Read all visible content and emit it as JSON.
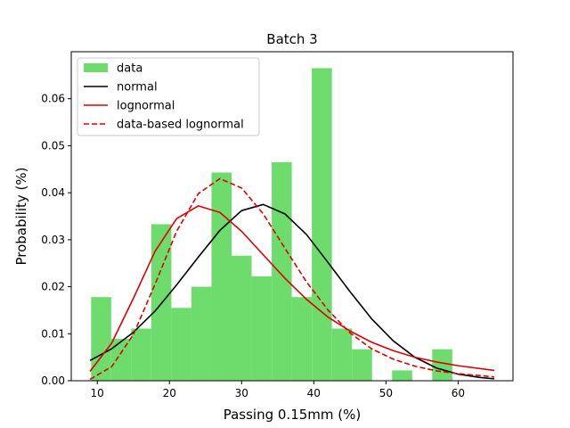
{
  "chart_data": {
    "type": "histogram",
    "title": "Batch 3",
    "xlabel": "Passing 0.15mm (%)",
    "ylabel": "Probability (%)",
    "xlim": [
      6.4,
      67.6
    ],
    "ylim": [
      0,
      0.07
    ],
    "xticks": [
      10,
      20,
      30,
      40,
      50,
      60
    ],
    "yticks": [
      0.0,
      0.01,
      0.02,
      0.03,
      0.04,
      0.05,
      0.06
    ],
    "ytick_labels": [
      "0.00",
      "0.01",
      "0.02",
      "0.03",
      "0.04",
      "0.05",
      "0.06"
    ],
    "grid": false,
    "legend_position": "upper-left",
    "bins": {
      "edges": [
        9.15,
        11.93,
        14.71,
        17.49,
        20.27,
        23.05,
        25.83,
        28.61,
        31.39,
        34.17,
        36.95,
        39.73,
        42.51,
        45.29,
        48.07,
        50.85,
        53.63,
        56.41,
        59.19,
        61.97,
        64.75
      ],
      "values": [
        0.0178,
        0.0089,
        0.0111,
        0.0333,
        0.0155,
        0.02,
        0.0443,
        0.0266,
        0.0222,
        0.0465,
        0.0178,
        0.0665,
        0.0111,
        0.0067,
        0.0,
        0.0022,
        0.0,
        0.0067,
        0.0,
        0.0
      ],
      "color": "#6ddc6d"
    },
    "series": [
      {
        "name": "normal",
        "color": "#000000",
        "dash": "solid",
        "x": [
          9,
          12,
          15,
          18,
          21,
          24,
          27,
          30,
          33,
          36,
          39,
          42,
          45,
          48,
          51,
          54,
          57,
          60,
          63,
          65
        ],
        "y": [
          0.0043,
          0.0068,
          0.0103,
          0.0148,
          0.0204,
          0.0263,
          0.032,
          0.0362,
          0.0375,
          0.0355,
          0.0311,
          0.0251,
          0.019,
          0.0132,
          0.0085,
          0.005,
          0.0027,
          0.0014,
          0.0007,
          0.0004
        ]
      },
      {
        "name": "lognormal",
        "color": "#e00000",
        "dash": "solid",
        "x": [
          9,
          12,
          15,
          18,
          21,
          24,
          27,
          30,
          33,
          36,
          39,
          42,
          45,
          48,
          51,
          54,
          57,
          60,
          63,
          65
        ],
        "y": [
          0.002,
          0.008,
          0.0175,
          0.0275,
          0.0345,
          0.0372,
          0.0358,
          0.0318,
          0.0268,
          0.0218,
          0.0173,
          0.0135,
          0.0106,
          0.0082,
          0.0064,
          0.005,
          0.004,
          0.0032,
          0.0026,
          0.0022
        ]
      },
      {
        "name": "data-based lognormal",
        "color": "#e00000",
        "dash": "dashed",
        "x": [
          9,
          12,
          15,
          18,
          21,
          24,
          27,
          30,
          33,
          36,
          39,
          42,
          45,
          48,
          51,
          54,
          57,
          60,
          63,
          65
        ],
        "y": [
          0.0003,
          0.003,
          0.0098,
          0.0205,
          0.0318,
          0.0398,
          0.043,
          0.041,
          0.0355,
          0.0282,
          0.021,
          0.015,
          0.0102,
          0.0068,
          0.0046,
          0.0031,
          0.0021,
          0.0015,
          0.0011,
          0.0008
        ]
      }
    ],
    "legend": [
      {
        "label": "data",
        "kind": "patch",
        "color": "#6ddc6d"
      },
      {
        "label": "normal",
        "kind": "line",
        "color": "#000000",
        "dash": "solid"
      },
      {
        "label": "lognormal",
        "kind": "line",
        "color": "#e00000",
        "dash": "solid"
      },
      {
        "label": "data-based lognormal",
        "kind": "line",
        "color": "#e00000",
        "dash": "dashed"
      }
    ]
  }
}
